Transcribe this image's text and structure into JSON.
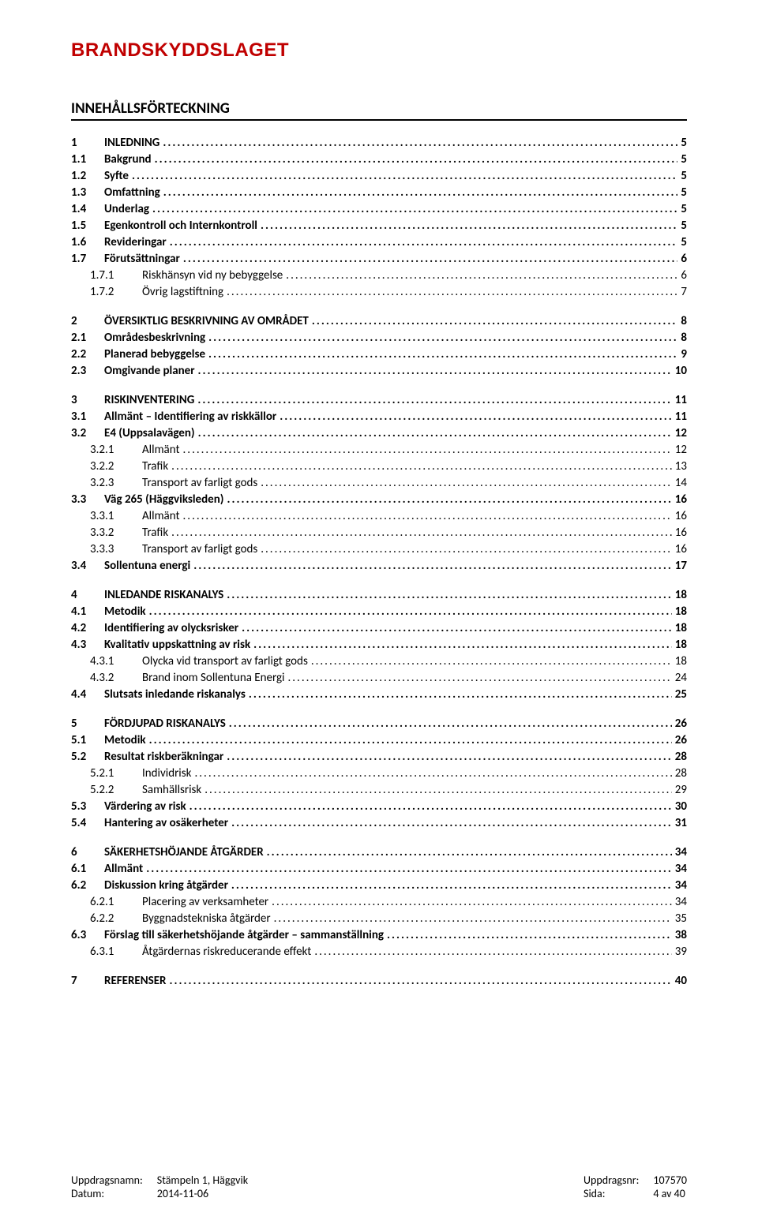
{
  "logo_text": "BRANDSKYDDSLAGET",
  "toc_title": "INNEHÅLLSFÖRTECKNING",
  "toc": [
    {
      "level": 1,
      "num": "1",
      "label": "INLEDNING",
      "page": "5"
    },
    {
      "level": 2,
      "num": "1.1",
      "label": "Bakgrund",
      "page": "5"
    },
    {
      "level": 2,
      "num": "1.2",
      "label": "Syfte",
      "page": "5"
    },
    {
      "level": 2,
      "num": "1.3",
      "label": "Omfattning",
      "page": "5"
    },
    {
      "level": 2,
      "num": "1.4",
      "label": "Underlag",
      "page": "5"
    },
    {
      "level": 2,
      "num": "1.5",
      "label": "Egenkontroll och Internkontroll",
      "page": "5"
    },
    {
      "level": 2,
      "num": "1.6",
      "label": "Revideringar",
      "page": "5"
    },
    {
      "level": 2,
      "num": "1.7",
      "label": "Förutsättningar",
      "page": "6"
    },
    {
      "level": 3,
      "num": "1.7.1",
      "label": "Riskhänsyn vid ny bebyggelse",
      "page": "6"
    },
    {
      "level": 3,
      "num": "1.7.2",
      "label": "Övrig lagstiftning",
      "page": "7"
    },
    {
      "gap": true
    },
    {
      "level": 1,
      "num": "2",
      "label": "ÖVERSIKTLIG BESKRIVNING AV OMRÅDET",
      "page": "8"
    },
    {
      "level": 2,
      "num": "2.1",
      "label": "Områdesbeskrivning",
      "page": "8"
    },
    {
      "level": 2,
      "num": "2.2",
      "label": "Planerad bebyggelse",
      "page": "9"
    },
    {
      "level": 2,
      "num": "2.3",
      "label": "Omgivande planer",
      "page": "10"
    },
    {
      "gap": true
    },
    {
      "level": 1,
      "num": "3",
      "label": "RISKINVENTERING",
      "page": "11"
    },
    {
      "level": 2,
      "num": "3.1",
      "label": "Allmänt – Identifiering av riskkällor",
      "page": "11"
    },
    {
      "level": 2,
      "num": "3.2",
      "label": "E4 (Uppsalavägen)",
      "page": "12"
    },
    {
      "level": 3,
      "num": "3.2.1",
      "label": "Allmänt",
      "page": "12"
    },
    {
      "level": 3,
      "num": "3.2.2",
      "label": "Trafik",
      "page": "13"
    },
    {
      "level": 3,
      "num": "3.2.3",
      "label": "Transport av farligt gods",
      "page": "14"
    },
    {
      "level": 2,
      "num": "3.3",
      "label": "Väg 265 (Häggviksleden)",
      "page": "16"
    },
    {
      "level": 3,
      "num": "3.3.1",
      "label": "Allmänt",
      "page": "16"
    },
    {
      "level": 3,
      "num": "3.3.2",
      "label": "Trafik",
      "page": "16"
    },
    {
      "level": 3,
      "num": "3.3.3",
      "label": "Transport av farligt gods",
      "page": "16"
    },
    {
      "level": 2,
      "num": "3.4",
      "label": "Sollentuna energi",
      "page": "17"
    },
    {
      "gap": true
    },
    {
      "level": 1,
      "num": "4",
      "label": "INLEDANDE RISKANALYS",
      "page": "18"
    },
    {
      "level": 2,
      "num": "4.1",
      "label": "Metodik",
      "page": "18"
    },
    {
      "level": 2,
      "num": "4.2",
      "label": "Identifiering av olycksrisker",
      "page": "18"
    },
    {
      "level": 2,
      "num": "4.3",
      "label": "Kvalitativ uppskattning av risk",
      "page": "18"
    },
    {
      "level": 3,
      "num": "4.3.1",
      "label": "Olycka vid transport av farligt gods",
      "page": "18"
    },
    {
      "level": 3,
      "num": "4.3.2",
      "label": "Brand inom Sollentuna Energi",
      "page": "24"
    },
    {
      "level": 2,
      "num": "4.4",
      "label": "Slutsats inledande riskanalys",
      "page": "25"
    },
    {
      "gap": true
    },
    {
      "level": 1,
      "num": "5",
      "label": "FÖRDJUPAD RISKANALYS",
      "page": "26"
    },
    {
      "level": 2,
      "num": "5.1",
      "label": "Metodik",
      "page": "26"
    },
    {
      "level": 2,
      "num": "5.2",
      "label": "Resultat riskberäkningar",
      "page": "28"
    },
    {
      "level": 3,
      "num": "5.2.1",
      "label": "Individrisk",
      "page": "28"
    },
    {
      "level": 3,
      "num": "5.2.2",
      "label": "Samhällsrisk",
      "page": "29"
    },
    {
      "level": 2,
      "num": "5.3",
      "label": "Värdering av risk",
      "page": "30"
    },
    {
      "level": 2,
      "num": "5.4",
      "label": "Hantering av osäkerheter",
      "page": "31"
    },
    {
      "gap": true
    },
    {
      "level": 1,
      "num": "6",
      "label": "SÄKERHETSHÖJANDE ÅTGÄRDER",
      "page": "34"
    },
    {
      "level": 2,
      "num": "6.1",
      "label": "Allmänt",
      "page": "34"
    },
    {
      "level": 2,
      "num": "6.2",
      "label": "Diskussion kring åtgärder",
      "page": "34"
    },
    {
      "level": 3,
      "num": "6.2.1",
      "label": "Placering av verksamheter",
      "page": "34"
    },
    {
      "level": 3,
      "num": "6.2.2",
      "label": "Byggnadstekniska åtgärder",
      "page": "35"
    },
    {
      "level": 2,
      "num": "6.3",
      "label": "Förslag till säkerhetshöjande åtgärder – sammanställning",
      "page": "38"
    },
    {
      "level": 3,
      "num": "6.3.1",
      "label": "Åtgärdernas riskreducerande effekt",
      "page": "39"
    },
    {
      "gap": true
    },
    {
      "level": 1,
      "num": "7",
      "label": "REFERENSER",
      "page": "40"
    }
  ],
  "footer": {
    "left_labels": [
      "Uppdragsnamn:",
      "Datum:"
    ],
    "left_values": [
      "Stämpeln 1, Häggvik",
      "2014-11-06"
    ],
    "right_labels": [
      "Uppdragsnr:",
      "Sida:"
    ],
    "right_values": [
      "107570",
      "4 av 40"
    ]
  }
}
